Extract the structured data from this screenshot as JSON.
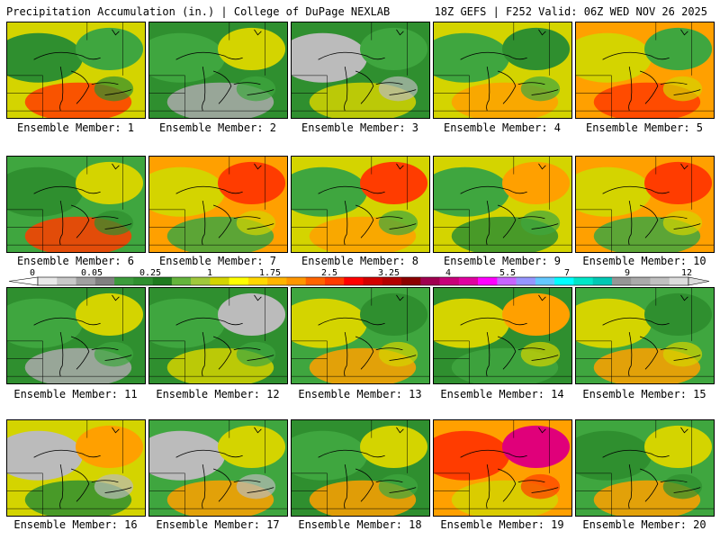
{
  "header": {
    "title_left": "Precipitation Accumulation (in.) | College of DuPage NEXLAB",
    "title_right": "18Z GEFS | F252 Valid: 06Z WED NOV 26 2025"
  },
  "members": [
    {
      "label": "Ensemble Member: 1",
      "pattern": [
        "#d4d400",
        "#2f8f2f",
        "#3fa63f",
        "#ff3c00"
      ]
    },
    {
      "label": "Ensemble Member: 2",
      "pattern": [
        "#2f8f2f",
        "#3fa63f",
        "#d4d400",
        "#aaa"
      ]
    },
    {
      "label": "Ensemble Member: 3",
      "pattern": [
        "#2f8f2f",
        "#bbb",
        "#3fa63f",
        "#d4d400"
      ]
    },
    {
      "label": "Ensemble Member: 4",
      "pattern": [
        "#d4d400",
        "#3fa63f",
        "#2f8f2f",
        "#ffa000"
      ]
    },
    {
      "label": "Ensemble Member: 5",
      "pattern": [
        "#ffa000",
        "#d4d400",
        "#3fa63f",
        "#ff3c00"
      ]
    },
    {
      "label": "Ensemble Member: 6",
      "pattern": [
        "#3fa63f",
        "#2f8f2f",
        "#d4d400",
        "#ff3c00"
      ]
    },
    {
      "label": "Ensemble Member: 7",
      "pattern": [
        "#ffa000",
        "#d4d400",
        "#ff3c00",
        "#3fa63f"
      ]
    },
    {
      "label": "Ensemble Member: 8",
      "pattern": [
        "#d4d400",
        "#3fa63f",
        "#ff3c00",
        "#ffa000"
      ]
    },
    {
      "label": "Ensemble Member: 9",
      "pattern": [
        "#d4d400",
        "#3fa63f",
        "#ffa000",
        "#2f8f2f"
      ]
    },
    {
      "label": "Ensemble Member: 10",
      "pattern": [
        "#ffa000",
        "#d4d400",
        "#ff3c00",
        "#3fa63f"
      ]
    },
    {
      "label": "Ensemble Member: 11",
      "pattern": [
        "#2f8f2f",
        "#3fa63f",
        "#d4d400",
        "#aaa"
      ]
    },
    {
      "label": "Ensemble Member: 12",
      "pattern": [
        "#2f8f2f",
        "#3fa63f",
        "#bbb",
        "#d4d400"
      ]
    },
    {
      "label": "Ensemble Member: 13",
      "pattern": [
        "#3fa63f",
        "#d4d400",
        "#2f8f2f",
        "#ffa000"
      ]
    },
    {
      "label": "Ensemble Member: 14",
      "pattern": [
        "#2f8f2f",
        "#d4d400",
        "#ffa000",
        "#3fa63f"
      ]
    },
    {
      "label": "Ensemble Member: 15",
      "pattern": [
        "#3fa63f",
        "#d4d400",
        "#2f8f2f",
        "#ffa000"
      ]
    },
    {
      "label": "Ensemble Member: 16",
      "pattern": [
        "#d4d400",
        "#bbb",
        "#ffa000",
        "#2f8f2f"
      ]
    },
    {
      "label": "Ensemble Member: 17",
      "pattern": [
        "#3fa63f",
        "#bbb",
        "#d4d400",
        "#ffa000"
      ]
    },
    {
      "label": "Ensemble Member: 18",
      "pattern": [
        "#2f8f2f",
        "#3fa63f",
        "#d4d400",
        "#ffa000"
      ]
    },
    {
      "label": "Ensemble Member: 19",
      "pattern": [
        "#ffa000",
        "#ff3c00",
        "#e0007a",
        "#d4d400"
      ]
    },
    {
      "label": "Ensemble Member: 20",
      "pattern": [
        "#3fa63f",
        "#2f8f2f",
        "#d4d400",
        "#ffa000"
      ]
    }
  ],
  "colorbar": {
    "ticks": [
      "0",
      "0.05",
      "0.25",
      "1",
      "1.75",
      "2.5",
      "3.25",
      "4",
      "5.5",
      "7",
      "9",
      "12"
    ],
    "colors": [
      "#e8e8e8",
      "#c8c8c8",
      "#a0a0a0",
      "#808080",
      "#3c9b3c",
      "#2f8f2f",
      "#1e7a1e",
      "#64b43c",
      "#a0c83c",
      "#d4d400",
      "#ffff00",
      "#ffd700",
      "#ffb400",
      "#ff9600",
      "#ff6400",
      "#ff3c00",
      "#ff0000",
      "#d20000",
      "#b40000",
      "#8c0000",
      "#a00050",
      "#c8007a",
      "#e000a0",
      "#ff00ff",
      "#c864ff",
      "#9696ff",
      "#64c8ff",
      "#00ffff",
      "#00e6c8",
      "#00c8b4",
      "#969696",
      "#aaaaaa",
      "#c0c0c0",
      "#dcdcdc"
    ]
  }
}
